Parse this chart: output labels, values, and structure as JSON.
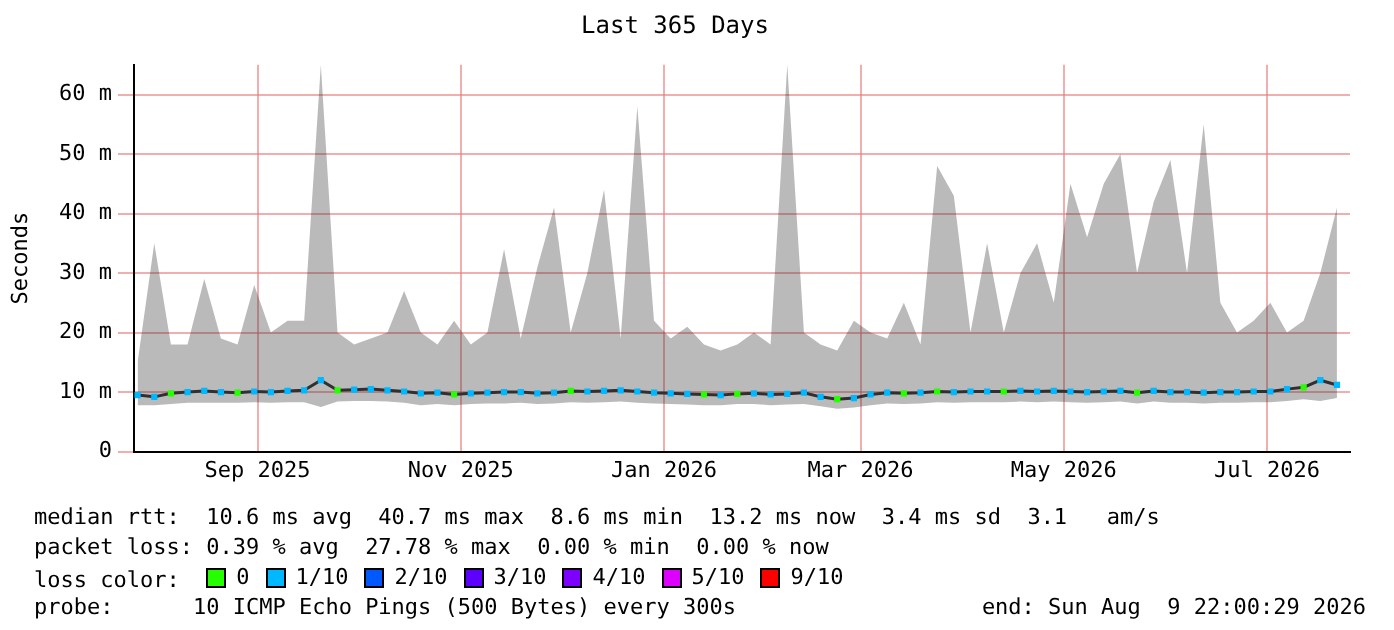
{
  "chart_data": {
    "type": "line",
    "title": "Last 365 Days",
    "ylabel": "Seconds",
    "x": [
      "2025-08-11",
      "2025-08-16",
      "2025-08-21",
      "2025-08-26",
      "2025-08-31",
      "2025-09-05",
      "2025-09-10",
      "2025-09-15",
      "2025-09-20",
      "2025-09-25",
      "2025-09-30",
      "2025-10-05",
      "2025-10-10",
      "2025-10-15",
      "2025-10-20",
      "2025-10-25",
      "2025-10-30",
      "2025-11-04",
      "2025-11-09",
      "2025-11-14",
      "2025-11-19",
      "2025-11-24",
      "2025-11-29",
      "2025-12-04",
      "2025-12-09",
      "2025-12-14",
      "2025-12-19",
      "2025-12-24",
      "2025-12-29",
      "2026-01-03",
      "2026-01-08",
      "2026-01-13",
      "2026-01-18",
      "2026-01-23",
      "2026-01-28",
      "2026-02-02",
      "2026-02-07",
      "2026-02-12",
      "2026-02-17",
      "2026-02-22",
      "2026-02-27",
      "2026-03-04",
      "2026-03-09",
      "2026-03-14",
      "2026-03-19",
      "2026-03-24",
      "2026-03-29",
      "2026-04-03",
      "2026-04-08",
      "2026-04-13",
      "2026-04-18",
      "2026-04-23",
      "2026-04-28",
      "2026-05-03",
      "2026-05-08",
      "2026-05-13",
      "2026-05-18",
      "2026-05-23",
      "2026-05-28",
      "2026-06-02",
      "2026-06-07",
      "2026-06-12",
      "2026-06-17",
      "2026-06-22",
      "2026-06-27",
      "2026-07-02",
      "2026-07-07",
      "2026-07-12",
      "2026-07-17",
      "2026-07-22",
      "2026-07-27",
      "2026-08-01",
      "2026-08-06"
    ],
    "series": [
      {
        "color": "#303030",
        "marker": "none",
        "values": [
          9.5,
          9.2,
          9.8,
          10,
          10.2,
          10,
          9.9,
          10.1,
          10,
          10.2,
          10.3,
          12,
          10.3,
          10.4,
          10.5,
          10.3,
          10.1,
          9.8,
          9.9,
          9.6,
          9.8,
          9.9,
          10,
          10,
          9.8,
          9.9,
          10.2,
          10.1,
          10.2,
          10.3,
          10.1,
          9.9,
          9.8,
          9.7,
          9.6,
          9.5,
          9.7,
          9.8,
          9.6,
          9.7,
          9.9,
          9.2,
          8.8,
          9,
          9.6,
          9.9,
          9.8,
          9.9,
          10.1,
          10,
          10.1,
          10.1,
          10.1,
          10.2,
          10.1,
          10.2,
          10.1,
          10,
          10.1,
          10.2,
          9.9,
          10.2,
          10,
          10,
          9.9,
          10,
          10,
          10.1,
          10.1,
          10.5,
          10.8,
          12,
          11.2
        ],
        "lower": [
          7.8,
          7.8,
          8,
          8.2,
          8.2,
          8.2,
          8.2,
          8.3,
          8.2,
          8.3,
          8.3,
          7.5,
          8.4,
          8.5,
          8.5,
          8.4,
          8.2,
          7.8,
          8,
          7.8,
          8,
          8.1,
          8.1,
          8.2,
          8,
          8.1,
          8.3,
          8.2,
          8.3,
          8.4,
          8.2,
          8.1,
          8,
          7.9,
          7.8,
          7.8,
          8,
          8,
          7.8,
          7.9,
          8,
          7.6,
          7.2,
          7.4,
          7.8,
          8.1,
          8,
          8.1,
          8.3,
          8.2,
          8.3,
          8.3,
          8.3,
          8.4,
          8.3,
          8.4,
          8.3,
          8.2,
          8.3,
          8.4,
          8.1,
          8.4,
          8.2,
          8.2,
          8.1,
          8.2,
          8.2,
          8.3,
          8.3,
          8.5,
          8.8,
          8.5,
          9
        ],
        "upper": [
          15,
          35,
          18,
          18,
          29,
          19,
          18,
          28,
          20,
          22,
          22,
          65,
          20,
          18,
          19,
          20,
          27,
          20,
          18,
          22,
          18,
          20,
          34,
          19,
          31,
          41,
          20,
          30,
          44,
          19,
          58,
          22,
          19,
          21,
          18,
          17,
          18,
          20,
          18,
          65,
          20,
          18,
          17,
          22,
          20,
          19,
          25,
          18,
          48,
          43,
          20,
          35,
          20,
          30,
          35,
          25,
          45,
          36,
          45,
          50,
          30,
          42,
          49,
          30,
          55,
          25,
          20,
          22,
          25,
          20,
          22,
          30,
          41
        ]
      },
      {
        "type": "scatter",
        "name": "0",
        "color": "#26ff00",
        "values": [
          null,
          null,
          9.8,
          null,
          null,
          null,
          9.9,
          null,
          null,
          null,
          null,
          null,
          10.3,
          null,
          null,
          null,
          null,
          null,
          null,
          9.6,
          null,
          null,
          null,
          null,
          null,
          null,
          10.2,
          null,
          null,
          null,
          null,
          null,
          null,
          null,
          9.6,
          null,
          9.7,
          null,
          null,
          null,
          null,
          null,
          8.8,
          null,
          null,
          null,
          9.8,
          null,
          10.1,
          null,
          null,
          null,
          10.1,
          null,
          null,
          null,
          null,
          null,
          null,
          null,
          9.9,
          null,
          null,
          null,
          null,
          null,
          null,
          null,
          null,
          null,
          10.8,
          null,
          null
        ]
      },
      {
        "type": "scatter",
        "name": "1/10",
        "color": "#00b8ff",
        "values": [
          9.5,
          9.2,
          null,
          10,
          10.2,
          10,
          null,
          10.1,
          10,
          10.2,
          10.3,
          12,
          null,
          10.4,
          10.5,
          10.3,
          10.1,
          9.8,
          9.9,
          null,
          9.8,
          9.9,
          10,
          10,
          9.8,
          9.9,
          null,
          10.1,
          10.2,
          10.3,
          10.1,
          9.9,
          9.8,
          9.7,
          null,
          9.5,
          null,
          9.8,
          9.6,
          9.7,
          9.9,
          9.2,
          null,
          9,
          9.6,
          9.9,
          null,
          9.9,
          null,
          10,
          10.1,
          10.1,
          null,
          10.2,
          10.1,
          10.2,
          10.1,
          10,
          10.1,
          10.2,
          null,
          10.2,
          10,
          10,
          9.9,
          10,
          10,
          10.1,
          10.1,
          10.5,
          null,
          12,
          11.2
        ]
      },
      {
        "type": "scatter",
        "name": "2/10",
        "color": "#0059ff",
        "values": [
          null,
          null,
          null,
          null,
          null,
          null,
          null,
          null,
          null,
          null,
          null,
          null,
          null,
          null,
          null,
          null,
          null,
          null,
          null,
          null,
          null,
          null,
          null,
          null,
          null,
          null,
          null,
          null,
          null,
          null,
          null,
          null,
          null,
          null,
          null,
          null,
          null,
          null,
          null,
          null,
          null,
          null,
          null,
          null,
          null,
          null,
          null,
          null,
          null,
          null,
          null,
          null,
          null,
          null,
          null,
          null,
          null,
          null,
          null,
          null,
          null,
          null,
          null,
          null,
          null,
          null,
          null,
          null,
          null,
          null,
          null,
          null,
          null
        ]
      },
      {
        "type": "scatter",
        "name": "3/10",
        "color": "#5e00ff",
        "values": [
          null,
          null,
          null,
          null,
          null,
          null,
          null,
          null,
          null,
          null,
          null,
          null,
          null,
          null,
          null,
          null,
          null,
          null,
          null,
          null,
          null,
          null,
          null,
          null,
          null,
          null,
          null,
          null,
          null,
          null,
          null,
          null,
          null,
          null,
          null,
          null,
          null,
          null,
          null,
          null,
          null,
          null,
          null,
          null,
          null,
          null,
          null,
          null,
          null,
          null,
          null,
          null,
          null,
          null,
          null,
          null,
          null,
          null,
          null,
          null,
          null,
          null,
          null,
          null,
          null,
          null,
          null,
          null,
          null,
          null,
          null,
          null,
          null
        ]
      },
      {
        "type": "scatter",
        "name": "4/10",
        "color": "#7e00ff",
        "values": [
          null,
          null,
          null,
          null,
          null,
          null,
          null,
          null,
          null,
          null,
          null,
          null,
          null,
          null,
          null,
          null,
          null,
          null,
          null,
          null,
          null,
          null,
          null,
          null,
          null,
          null,
          null,
          null,
          null,
          null,
          null,
          null,
          null,
          null,
          null,
          null,
          null,
          null,
          null,
          null,
          null,
          null,
          null,
          null,
          null,
          null,
          null,
          null,
          null,
          null,
          null,
          null,
          null,
          null,
          null,
          null,
          null,
          null,
          null,
          null,
          null,
          null,
          null,
          null,
          null,
          null,
          null,
          null,
          null,
          null,
          null,
          null,
          null
        ]
      },
      {
        "type": "scatter",
        "name": "5/10",
        "color": "#dd00ff",
        "values": [
          null,
          null,
          null,
          null,
          null,
          null,
          null,
          null,
          null,
          null,
          null,
          null,
          null,
          null,
          null,
          null,
          null,
          null,
          null,
          null,
          null,
          null,
          null,
          null,
          null,
          null,
          null,
          null,
          null,
          null,
          null,
          null,
          null,
          null,
          null,
          null,
          null,
          null,
          null,
          null,
          null,
          null,
          null,
          null,
          null,
          null,
          null,
          null,
          null,
          null,
          null,
          null,
          null,
          null,
          null,
          null,
          null,
          null,
          null,
          null,
          null,
          null,
          null,
          null,
          null,
          null,
          null,
          null,
          null,
          null,
          null,
          null,
          null
        ]
      },
      {
        "type": "scatter",
        "name": "9/10",
        "color": "#ff0000",
        "values": [
          null,
          null,
          null,
          null,
          null,
          null,
          null,
          null,
          null,
          null,
          null,
          null,
          null,
          null,
          null,
          null,
          null,
          null,
          null,
          null,
          null,
          null,
          null,
          null,
          null,
          null,
          null,
          null,
          null,
          null,
          null,
          null,
          null,
          null,
          null,
          null,
          null,
          null,
          null,
          null,
          null,
          null,
          null,
          null,
          null,
          null,
          null,
          null,
          null,
          null,
          null,
          null,
          null,
          null,
          null,
          null,
          null,
          null,
          null,
          null,
          null,
          null,
          null,
          null,
          null,
          null,
          null,
          null,
          null,
          null,
          null,
          null,
          null
        ]
      }
    ],
    "xlim": [
      "2025-08-09T22:00",
      "2026-08-09T22:00"
    ],
    "xticks": [
      {
        "value": "2025-09-16",
        "label": "Sep 2025"
      },
      {
        "value": "2025-11-16",
        "label": "Nov 2025"
      },
      {
        "value": "2026-01-16",
        "label": "Jan 2026"
      },
      {
        "value": "2026-03-16",
        "label": "Mar 2026"
      },
      {
        "value": "2026-05-16",
        "label": "May 2026"
      },
      {
        "value": "2026-07-16",
        "label": "Jul 2026"
      }
    ],
    "ylim": [
      0,
      65
    ],
    "yticks": [
      0,
      {
        "value": 10,
        "label": "10 m"
      },
      {
        "value": 20,
        "label": "20 m"
      },
      {
        "value": 30,
        "label": "30 m"
      },
      {
        "value": 40,
        "label": "40 m"
      },
      {
        "value": 50,
        "label": "50 m"
      },
      {
        "value": 60,
        "label": "60 m"
      }
    ],
    "grid": true,
    "legend": "bottom",
    "marker": "square",
    "annotations": [
      "median rtt:  10.6 ms avg  40.7 ms max  8.6 ms min  13.2 ms now  3.4 ms sd  3.1   am/s",
      "packet loss: 0.39 % avg  27.78 % max  0.00 % min  0.00 % now",
      "loss color:",
      "probe:      10 ICMP Echo Pings (500 Bytes) every 300s",
      "end: Sun Aug  9 22:00:29 2026"
    ]
  }
}
